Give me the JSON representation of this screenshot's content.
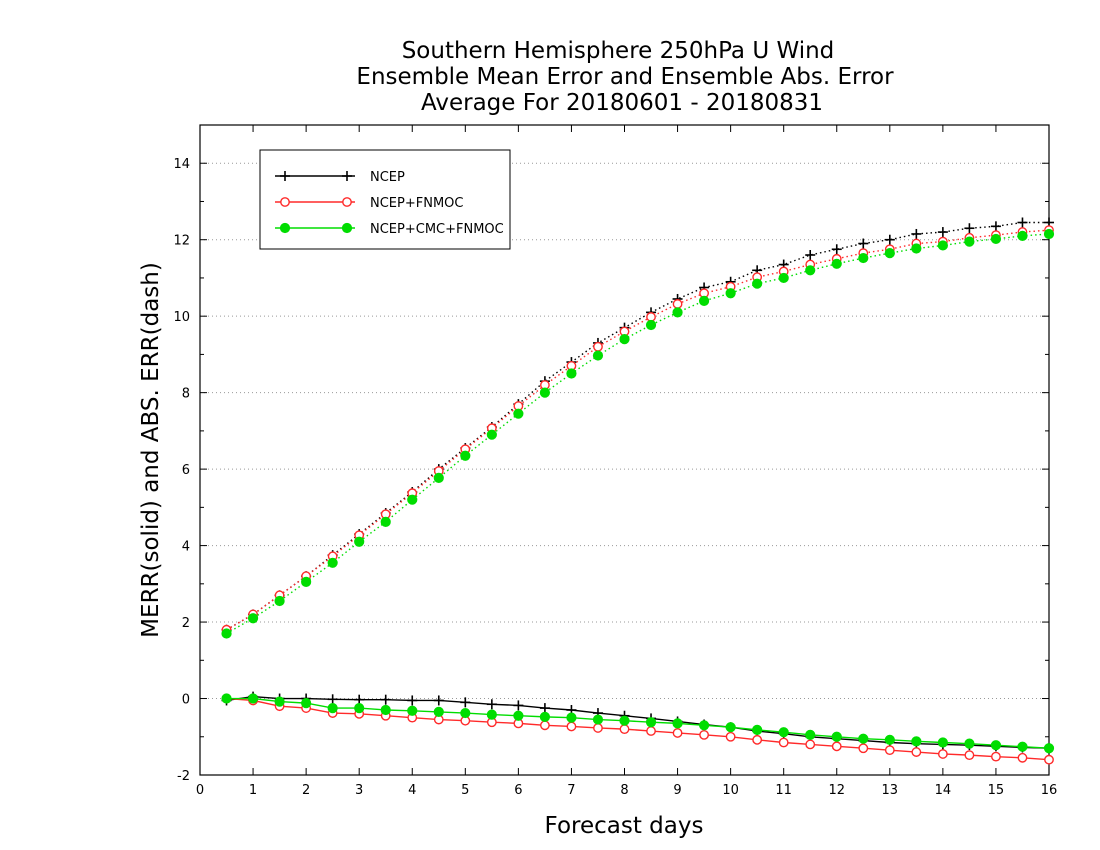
{
  "chart_data": {
    "type": "line",
    "title_lines": [
      "Southern Hemisphere 250hPa U Wind",
      "Ensemble Mean Error and Ensemble Abs. Error",
      "Average For 20180601 - 20180831"
    ],
    "xlabel": "Forecast days",
    "ylabel": "MERR(solid) and ABS. ERR(dash)",
    "xlim": [
      0,
      16
    ],
    "ylim": [
      -2,
      15
    ],
    "xticks": [
      "0",
      "1",
      "2",
      "3",
      "4",
      "5",
      "6",
      "7",
      "8",
      "9",
      "10",
      "11",
      "12",
      "13",
      "14",
      "15",
      "16"
    ],
    "yticks": [
      "-2",
      "0",
      "2",
      "4",
      "6",
      "8",
      "10",
      "12",
      "14"
    ],
    "grid": "horizontal dotted",
    "legend_position": "top-left",
    "x": [
      0.5,
      1,
      1.5,
      2,
      2.5,
      3,
      3.5,
      4,
      4.5,
      5,
      5.5,
      6,
      6.5,
      7,
      7.5,
      8,
      8.5,
      9,
      9.5,
      10,
      10.5,
      11,
      11.5,
      12,
      12.5,
      13,
      13.5,
      14,
      14.5,
      15,
      15.5,
      16
    ],
    "series": [
      {
        "name": "NCEP",
        "color": "#000000",
        "marker": "plus",
        "abs_err": [
          1.8,
          2.2,
          2.7,
          3.2,
          3.75,
          4.3,
          4.85,
          5.4,
          6.0,
          6.55,
          7.1,
          7.7,
          8.3,
          8.8,
          9.3,
          9.7,
          10.1,
          10.45,
          10.75,
          10.9,
          11.2,
          11.35,
          11.6,
          11.75,
          11.9,
          12.0,
          12.15,
          12.2,
          12.3,
          12.35,
          12.45,
          12.45
        ],
        "mean_err": [
          -0.05,
          0.05,
          0.0,
          0.0,
          -0.02,
          -0.03,
          -0.03,
          -0.05,
          -0.05,
          -0.1,
          -0.15,
          -0.18,
          -0.25,
          -0.3,
          -0.38,
          -0.45,
          -0.52,
          -0.6,
          -0.68,
          -0.75,
          -0.85,
          -0.92,
          -1.0,
          -1.05,
          -1.1,
          -1.15,
          -1.18,
          -1.2,
          -1.22,
          -1.25,
          -1.28,
          -1.3
        ]
      },
      {
        "name": "NCEP+FNMOC",
        "color": "#ff2a2a",
        "marker": "open-circle",
        "abs_err": [
          1.8,
          2.2,
          2.7,
          3.2,
          3.72,
          4.27,
          4.82,
          5.37,
          5.95,
          6.52,
          7.07,
          7.65,
          8.2,
          8.7,
          9.2,
          9.6,
          9.98,
          10.32,
          10.6,
          10.77,
          11.02,
          11.17,
          11.35,
          11.5,
          11.65,
          11.75,
          11.9,
          11.95,
          12.05,
          12.12,
          12.2,
          12.25
        ],
        "mean_err": [
          0.0,
          -0.05,
          -0.2,
          -0.25,
          -0.38,
          -0.4,
          -0.45,
          -0.5,
          -0.55,
          -0.58,
          -0.62,
          -0.65,
          -0.7,
          -0.73,
          -0.77,
          -0.8,
          -0.85,
          -0.9,
          -0.95,
          -1.0,
          -1.08,
          -1.15,
          -1.2,
          -1.25,
          -1.3,
          -1.35,
          -1.4,
          -1.45,
          -1.48,
          -1.52,
          -1.55,
          -1.6
        ]
      },
      {
        "name": "NCEP+CMC+FNMOC",
        "color": "#00dd00",
        "marker": "filled-circle",
        "abs_err": [
          1.7,
          2.1,
          2.55,
          3.05,
          3.55,
          4.1,
          4.62,
          5.2,
          5.77,
          6.35,
          6.9,
          7.45,
          8.0,
          8.5,
          8.97,
          9.4,
          9.77,
          10.1,
          10.4,
          10.6,
          10.85,
          11.0,
          11.2,
          11.37,
          11.52,
          11.65,
          11.77,
          11.85,
          11.95,
          12.02,
          12.1,
          12.15
        ],
        "mean_err": [
          0.0,
          0.0,
          -0.08,
          -0.12,
          -0.25,
          -0.25,
          -0.3,
          -0.32,
          -0.35,
          -0.38,
          -0.42,
          -0.45,
          -0.48,
          -0.5,
          -0.55,
          -0.58,
          -0.62,
          -0.65,
          -0.7,
          -0.75,
          -0.82,
          -0.88,
          -0.95,
          -1.0,
          -1.05,
          -1.08,
          -1.12,
          -1.15,
          -1.18,
          -1.22,
          -1.26,
          -1.3
        ]
      }
    ]
  }
}
